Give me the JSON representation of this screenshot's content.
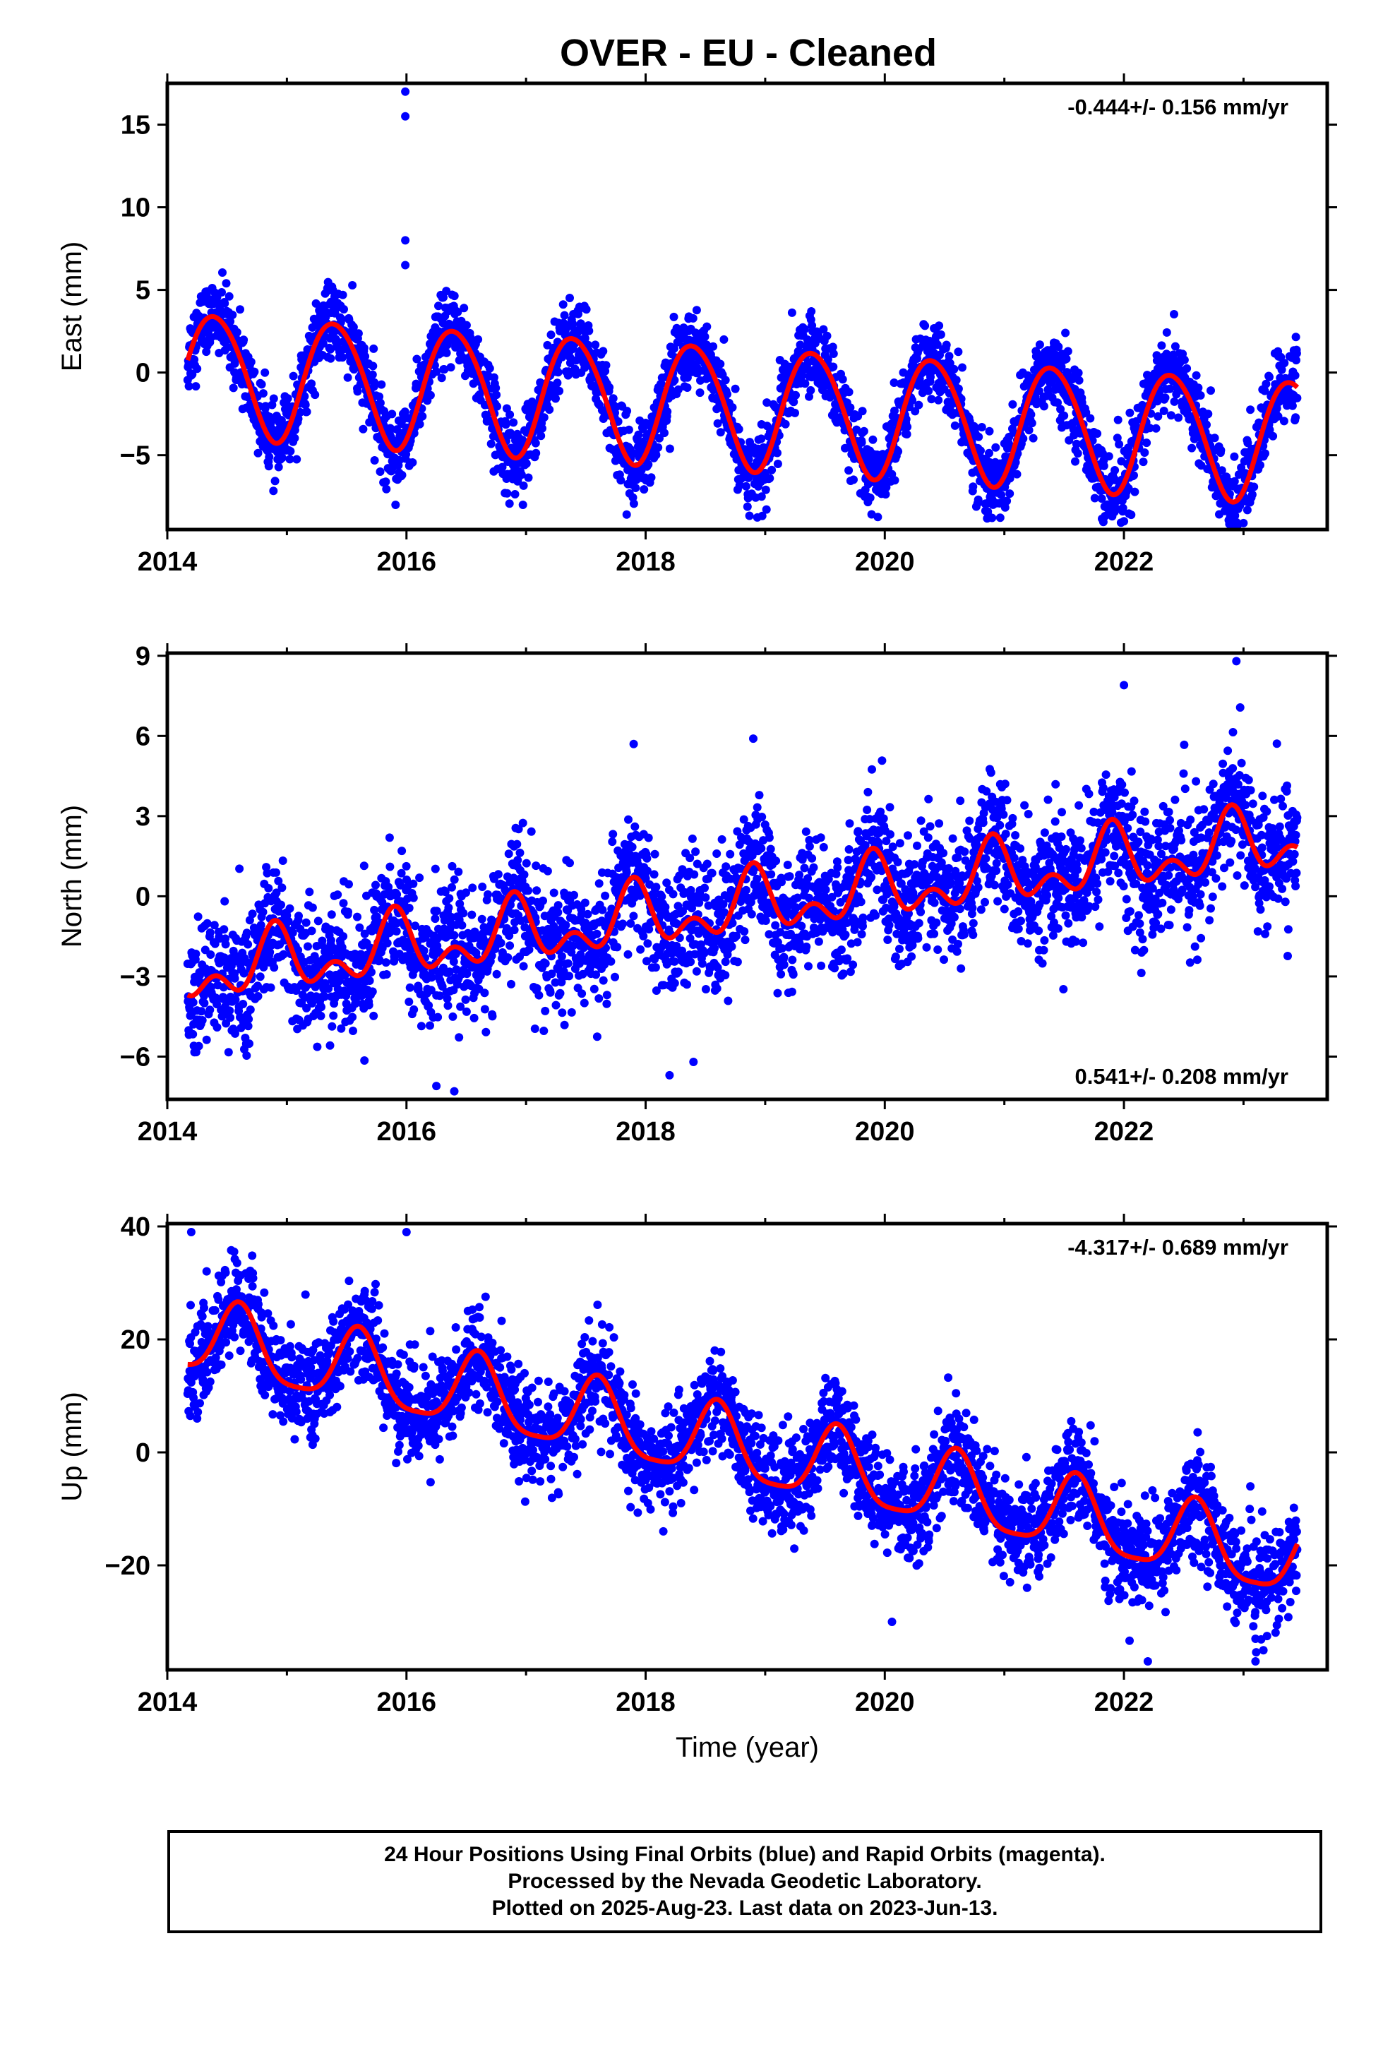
{
  "title": "OVER  - EU - Cleaned",
  "footer": {
    "line1": "24 Hour Positions Using Final Orbits (blue) and Rapid Orbits (magenta).",
    "line2": "Processed by the Nevada Geodetic Laboratory.",
    "line3": "Plotted on 2025-Aug-23. Last data on 2023-Jun-13."
  },
  "colors": {
    "points": "#0000ff",
    "fit": "#ff0000",
    "axes": "#000000"
  },
  "chart_data": [
    {
      "type": "scatter",
      "ylabel": "East (mm)",
      "xlabel": "",
      "rate_text": "-0.444+/- 0.156 mm/yr",
      "rate_position": "top-right",
      "xlim": [
        2014.0,
        2023.7
      ],
      "ylim": [
        -9.5,
        17.5
      ],
      "xticks": [
        2014,
        2016,
        2018,
        2020,
        2022
      ],
      "yticks": [
        -5,
        0,
        5,
        10,
        15
      ],
      "series": [
        {
          "kind": "points",
          "x_start": 2014.17,
          "x_end": 2023.45,
          "trend_at_start": 0.0,
          "rate": -0.444,
          "annual_amplitude": 3.7,
          "annual_peak": 0.4,
          "semiannual_amplitude": 0.3,
          "semiannual_peak": 0.2,
          "noise": 1.15,
          "outliers": [
            [
              2015.99,
              17.0
            ],
            [
              2015.99,
              15.5
            ],
            [
              2015.99,
              8.0
            ],
            [
              2015.99,
              6.5
            ],
            [
              2022.0,
              -9.0
            ],
            [
              2022.89,
              -8.7
            ],
            [
              2018.97,
              -7.5
            ]
          ]
        },
        {
          "kind": "fit",
          "x_start": 2014.17,
          "x_end": 2023.45,
          "trend_at_start": 0.0,
          "rate": -0.444,
          "annual_amplitude": 3.7,
          "annual_peak": 0.4,
          "semiannual_amplitude": 0.3,
          "semiannual_peak": 0.2
        }
      ]
    },
    {
      "type": "scatter",
      "ylabel": "North (mm)",
      "xlabel": "",
      "rate_text": "0.541+/- 0.208 mm/yr",
      "rate_position": "bottom-right",
      "xlim": [
        2014.0,
        2023.7
      ],
      "ylim": [
        -7.6,
        9.1
      ],
      "xticks": [
        2014,
        2016,
        2018,
        2020,
        2022
      ],
      "yticks": [
        -6,
        -3,
        0,
        3,
        6,
        9
      ],
      "series": [
        {
          "kind": "points",
          "x_start": 2014.17,
          "x_end": 2023.45,
          "trend_at_start": -2.9,
          "rate": 0.541,
          "annual_amplitude": 0.9,
          "annual_peak": 0.9,
          "semiannual_amplitude": 0.7,
          "semiannual_peak": 0.4,
          "noise": 1.2,
          "outliers": [
            [
              2022.94,
              8.8
            ],
            [
              2022.0,
              7.9
            ],
            [
              2018.9,
              5.9
            ],
            [
              2017.9,
              5.7
            ],
            [
              2016.25,
              -7.1
            ],
            [
              2016.4,
              -7.3
            ],
            [
              2018.2,
              -6.7
            ],
            [
              2018.4,
              -6.2
            ]
          ]
        },
        {
          "kind": "fit",
          "x_start": 2014.17,
          "x_end": 2023.45,
          "trend_at_start": -2.9,
          "rate": 0.541,
          "annual_amplitude": 0.9,
          "annual_peak": 0.9,
          "semiannual_amplitude": 0.7,
          "semiannual_peak": 0.4
        }
      ]
    },
    {
      "type": "scatter",
      "ylabel": "Up (mm)",
      "xlabel": "Time (year)",
      "rate_text": "-4.317+/- 0.689 mm/yr",
      "rate_position": "top-right",
      "xlim": [
        2014.0,
        2023.7
      ],
      "ylim": [
        -38.5,
        40.5
      ],
      "xticks": [
        2014,
        2016,
        2018,
        2020,
        2022
      ],
      "yticks": [
        -20,
        0,
        20,
        40
      ],
      "series": [
        {
          "kind": "points",
          "x_start": 2014.17,
          "x_end": 2023.45,
          "trend_at_start": 20.5,
          "rate": -4.317,
          "annual_amplitude": 6.5,
          "annual_peak": 0.6,
          "semiannual_amplitude": 1.5,
          "semiannual_peak": 0.1,
          "noise": 4.4,
          "outliers": [
            [
              2014.2,
              39.0
            ],
            [
              2016.0,
              39.0
            ],
            [
              2022.2,
              -37.0
            ],
            [
              2023.1,
              -37.0
            ],
            [
              2020.06,
              -30.0
            ],
            [
              2023.1,
              -33.0
            ]
          ]
        },
        {
          "kind": "fit",
          "x_start": 2014.17,
          "x_end": 2023.45,
          "trend_at_start": 20.5,
          "rate": -4.317,
          "annual_amplitude": 6.5,
          "annual_peak": 0.6,
          "semiannual_amplitude": 1.5,
          "semiannual_peak": 0.1
        }
      ]
    }
  ]
}
